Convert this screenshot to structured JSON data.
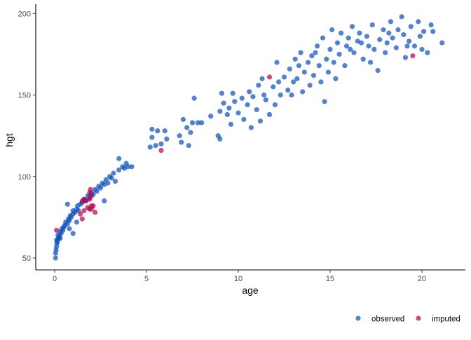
{
  "chart_data": {
    "type": "scatter",
    "title": "",
    "xlabel": "age",
    "ylabel": "hgt",
    "xlim": [
      -1.1,
      21.8
    ],
    "ylim": [
      43,
      204
    ],
    "xticks": [
      0,
      5,
      10,
      15,
      20
    ],
    "yticks": [
      50,
      100,
      150,
      200
    ],
    "grid": false,
    "legend_position": "bottom-right",
    "series": [
      {
        "name": "observed",
        "color": "#0a4fb8",
        "points": [
          [
            0.05,
            50
          ],
          [
            0.05,
            53
          ],
          [
            0.08,
            55
          ],
          [
            0.1,
            57
          ],
          [
            0.12,
            59
          ],
          [
            0.1,
            61
          ],
          [
            0.15,
            60
          ],
          [
            0.2,
            62
          ],
          [
            0.18,
            64
          ],
          [
            0.25,
            63
          ],
          [
            0.3,
            66
          ],
          [
            0.3,
            62
          ],
          [
            0.35,
            65
          ],
          [
            0.4,
            68
          ],
          [
            0.45,
            67
          ],
          [
            0.5,
            69
          ],
          [
            0.55,
            70
          ],
          [
            0.6,
            72
          ],
          [
            0.7,
            71
          ],
          [
            0.75,
            74
          ],
          [
            0.8,
            73
          ],
          [
            0.85,
            76
          ],
          [
            0.9,
            75
          ],
          [
            1.0,
            77
          ],
          [
            1.0,
            79
          ],
          [
            1.1,
            78
          ],
          [
            1.2,
            80
          ],
          [
            1.25,
            82
          ],
          [
            1.3,
            79
          ],
          [
            1.4,
            83
          ],
          [
            1.5,
            84
          ],
          [
            1.6,
            86
          ],
          [
            1.7,
            85
          ],
          [
            1.8,
            88
          ],
          [
            1.9,
            87
          ],
          [
            2.0,
            90
          ],
          [
            2.1,
            89
          ],
          [
            2.2,
            92
          ],
          [
            2.3,
            91
          ],
          [
            2.4,
            94
          ],
          [
            2.5,
            93
          ],
          [
            2.6,
            96
          ],
          [
            2.7,
            95
          ],
          [
            2.8,
            98
          ],
          [
            2.9,
            96
          ],
          [
            3.0,
            100
          ],
          [
            3.1,
            99
          ],
          [
            3.2,
            102
          ],
          [
            3.3,
            97
          ],
          [
            3.5,
            104
          ],
          [
            3.7,
            106
          ],
          [
            3.8,
            105
          ],
          [
            3.9,
            108
          ],
          [
            4.0,
            106
          ],
          [
            4.2,
            106
          ],
          [
            3.5,
            111
          ],
          [
            0.7,
            83
          ],
          [
            0.8,
            68
          ],
          [
            1.0,
            65
          ],
          [
            2.7,
            85
          ],
          [
            1.2,
            72
          ],
          [
            5.3,
            124
          ],
          [
            5.3,
            129
          ],
          [
            5.6,
            128
          ],
          [
            5.8,
            120
          ],
          [
            6.0,
            128
          ],
          [
            5.5,
            119
          ],
          [
            6.1,
            123
          ],
          [
            5.2,
            118
          ],
          [
            6.8,
            125
          ],
          [
            6.9,
            121
          ],
          [
            7.2,
            130
          ],
          [
            7.4,
            127
          ],
          [
            7.5,
            133
          ],
          [
            7.6,
            148
          ],
          [
            7.8,
            133
          ],
          [
            8.0,
            133
          ],
          [
            7.3,
            119
          ],
          [
            7.0,
            135
          ],
          [
            8.9,
            125
          ],
          [
            9.0,
            123
          ],
          [
            9.0,
            140
          ],
          [
            9.1,
            151
          ],
          [
            9.2,
            145
          ],
          [
            9.4,
            138
          ],
          [
            9.5,
            142
          ],
          [
            9.6,
            132
          ],
          [
            9.8,
            146
          ],
          [
            10.0,
            139
          ],
          [
            10.2,
            148
          ],
          [
            10.3,
            135
          ],
          [
            10.5,
            144
          ],
          [
            10.6,
            152
          ],
          [
            10.8,
            149
          ],
          [
            11.0,
            141
          ],
          [
            11.1,
            156
          ],
          [
            11.2,
            134
          ],
          [
            11.4,
            150
          ],
          [
            11.5,
            147
          ],
          [
            11.7,
            138
          ],
          [
            11.9,
            155
          ],
          [
            12.0,
            144
          ],
          [
            12.2,
            158
          ],
          [
            12.3,
            150
          ],
          [
            12.5,
            161
          ],
          [
            12.7,
            153
          ],
          [
            12.8,
            166
          ],
          [
            13.0,
            158
          ],
          [
            13.1,
            172
          ],
          [
            13.2,
            160
          ],
          [
            13.4,
            176
          ],
          [
            13.5,
            152
          ],
          [
            13.6,
            164
          ],
          [
            13.8,
            170
          ],
          [
            13.9,
            156
          ],
          [
            14.0,
            174
          ],
          [
            14.1,
            162
          ],
          [
            14.3,
            180
          ],
          [
            14.4,
            168
          ],
          [
            14.5,
            158
          ],
          [
            14.6,
            185
          ],
          [
            14.8,
            172
          ],
          [
            14.9,
            164
          ],
          [
            15.0,
            178
          ],
          [
            15.1,
            190
          ],
          [
            15.2,
            170
          ],
          [
            15.4,
            182
          ],
          [
            15.5,
            175
          ],
          [
            15.6,
            188
          ],
          [
            15.8,
            168
          ],
          [
            15.9,
            180
          ],
          [
            16.0,
            185
          ],
          [
            16.2,
            192
          ],
          [
            16.3,
            176
          ],
          [
            16.5,
            183
          ],
          [
            16.6,
            188
          ],
          [
            16.8,
            172
          ],
          [
            17.0,
            186
          ],
          [
            17.1,
            180
          ],
          [
            17.3,
            193
          ],
          [
            17.4,
            178
          ],
          [
            17.6,
            165
          ],
          [
            17.7,
            184
          ],
          [
            17.9,
            190
          ],
          [
            18.0,
            176
          ],
          [
            18.1,
            182
          ],
          [
            18.3,
            195
          ],
          [
            18.4,
            185
          ],
          [
            18.6,
            179
          ],
          [
            18.7,
            190
          ],
          [
            18.9,
            198
          ],
          [
            19.0,
            187
          ],
          [
            19.1,
            173
          ],
          [
            19.3,
            183
          ],
          [
            19.4,
            192
          ],
          [
            19.6,
            180
          ],
          [
            19.8,
            195
          ],
          [
            19.9,
            186
          ],
          [
            20.0,
            178
          ],
          [
            20.1,
            189
          ],
          [
            20.5,
            193
          ],
          [
            20.6,
            189
          ],
          [
            21.1,
            182
          ],
          [
            12.9,
            150
          ],
          [
            13.3,
            168
          ],
          [
            14.2,
            176
          ],
          [
            15.3,
            160
          ],
          [
            16.1,
            178
          ],
          [
            16.7,
            182
          ],
          [
            17.2,
            170
          ],
          [
            18.2,
            188
          ],
          [
            19.2,
            180
          ],
          [
            20.3,
            176
          ],
          [
            14.7,
            146
          ],
          [
            12.1,
            170
          ],
          [
            11.3,
            160
          ],
          [
            10.7,
            130
          ],
          [
            8.5,
            137
          ],
          [
            9.7,
            151
          ]
        ]
      },
      {
        "name": "imputed",
        "color": "#b3004f",
        "points": [
          [
            0.1,
            67
          ],
          [
            1.5,
            85
          ],
          [
            1.6,
            86
          ],
          [
            1.7,
            85
          ],
          [
            1.9,
            90
          ],
          [
            1.95,
            92
          ],
          [
            2.0,
            88
          ],
          [
            1.8,
            81
          ],
          [
            1.9,
            80
          ],
          [
            2.0,
            80
          ],
          [
            2.1,
            82
          ],
          [
            2.2,
            78
          ],
          [
            1.6,
            79
          ],
          [
            1.5,
            74
          ],
          [
            1.4,
            77
          ],
          [
            1.9,
            86
          ],
          [
            5.8,
            116
          ],
          [
            11.7,
            161
          ],
          [
            19.5,
            174
          ],
          [
            2.0,
            82
          ]
        ]
      }
    ]
  }
}
